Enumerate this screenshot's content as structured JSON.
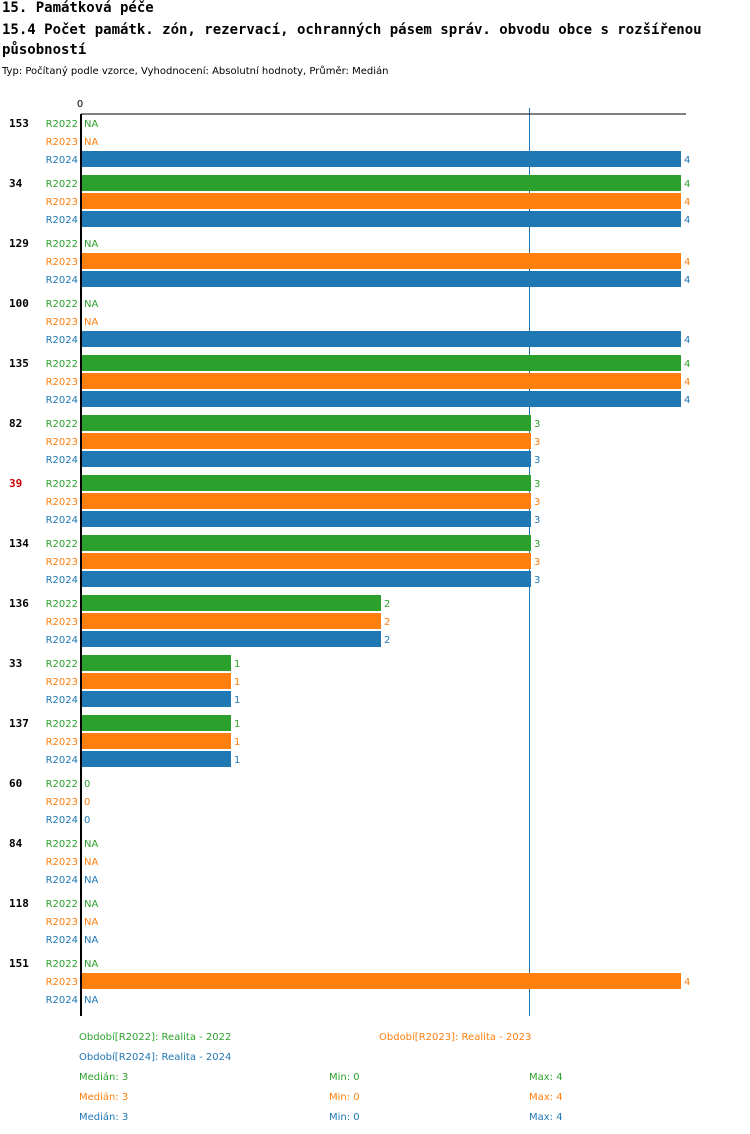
{
  "header": {
    "section_title": "15. Památková péče",
    "chart_title": "15.4 Počet památk. zón, rezervací, ochranných pásem správ. obvodu obce s rozšířenou působností",
    "subtitle": "Typ: Počítaný podle vzorce, Vyhodnocení: Absolutní hodnoty, Průměr: Medián"
  },
  "colors": {
    "R2022": "#2ca02c",
    "R2023": "#ff7f0e",
    "R2024": "#1f77b4",
    "highlight": "#cc0000",
    "axis": "#000000",
    "median_line": "#1f77b4"
  },
  "chart_data": {
    "type": "bar",
    "orientation": "horizontal",
    "xlim": [
      0,
      4
    ],
    "x_tick_labels": [
      "0"
    ],
    "median_reference": 3,
    "categories": [
      "153",
      "34",
      "129",
      "100",
      "135",
      "82",
      "39",
      "134",
      "136",
      "33",
      "137",
      "60",
      "84",
      "118",
      "151"
    ],
    "highlighted_category": "39",
    "na_label": "NA",
    "series": [
      {
        "name": "R2022",
        "values": [
          null,
          4,
          null,
          null,
          4,
          3,
          3,
          3,
          2,
          1,
          1,
          0,
          null,
          null,
          null
        ]
      },
      {
        "name": "R2023",
        "values": [
          null,
          4,
          4,
          null,
          4,
          3,
          3,
          3,
          2,
          1,
          1,
          0,
          null,
          null,
          4
        ]
      },
      {
        "name": "R2024",
        "values": [
          4,
          4,
          4,
          4,
          4,
          3,
          3,
          3,
          2,
          1,
          1,
          0,
          null,
          null,
          null
        ]
      }
    ],
    "legend": [
      {
        "series": "R2022",
        "label": "Období[R2022]: Realita - 2022"
      },
      {
        "series": "R2023",
        "label": "Období[R2023]: Realita - 2023"
      },
      {
        "series": "R2024",
        "label": "Období[R2024]: Realita - 2024"
      }
    ],
    "stats": [
      {
        "series": "R2022",
        "median": "Medián: 3",
        "min": "Min: 0",
        "max": "Max: 4"
      },
      {
        "series": "R2023",
        "median": "Medián: 3",
        "min": "Min: 0",
        "max": "Max: 4"
      },
      {
        "series": "R2024",
        "median": "Medián: 3",
        "min": "Min: 0",
        "max": "Max: 4"
      }
    ]
  }
}
